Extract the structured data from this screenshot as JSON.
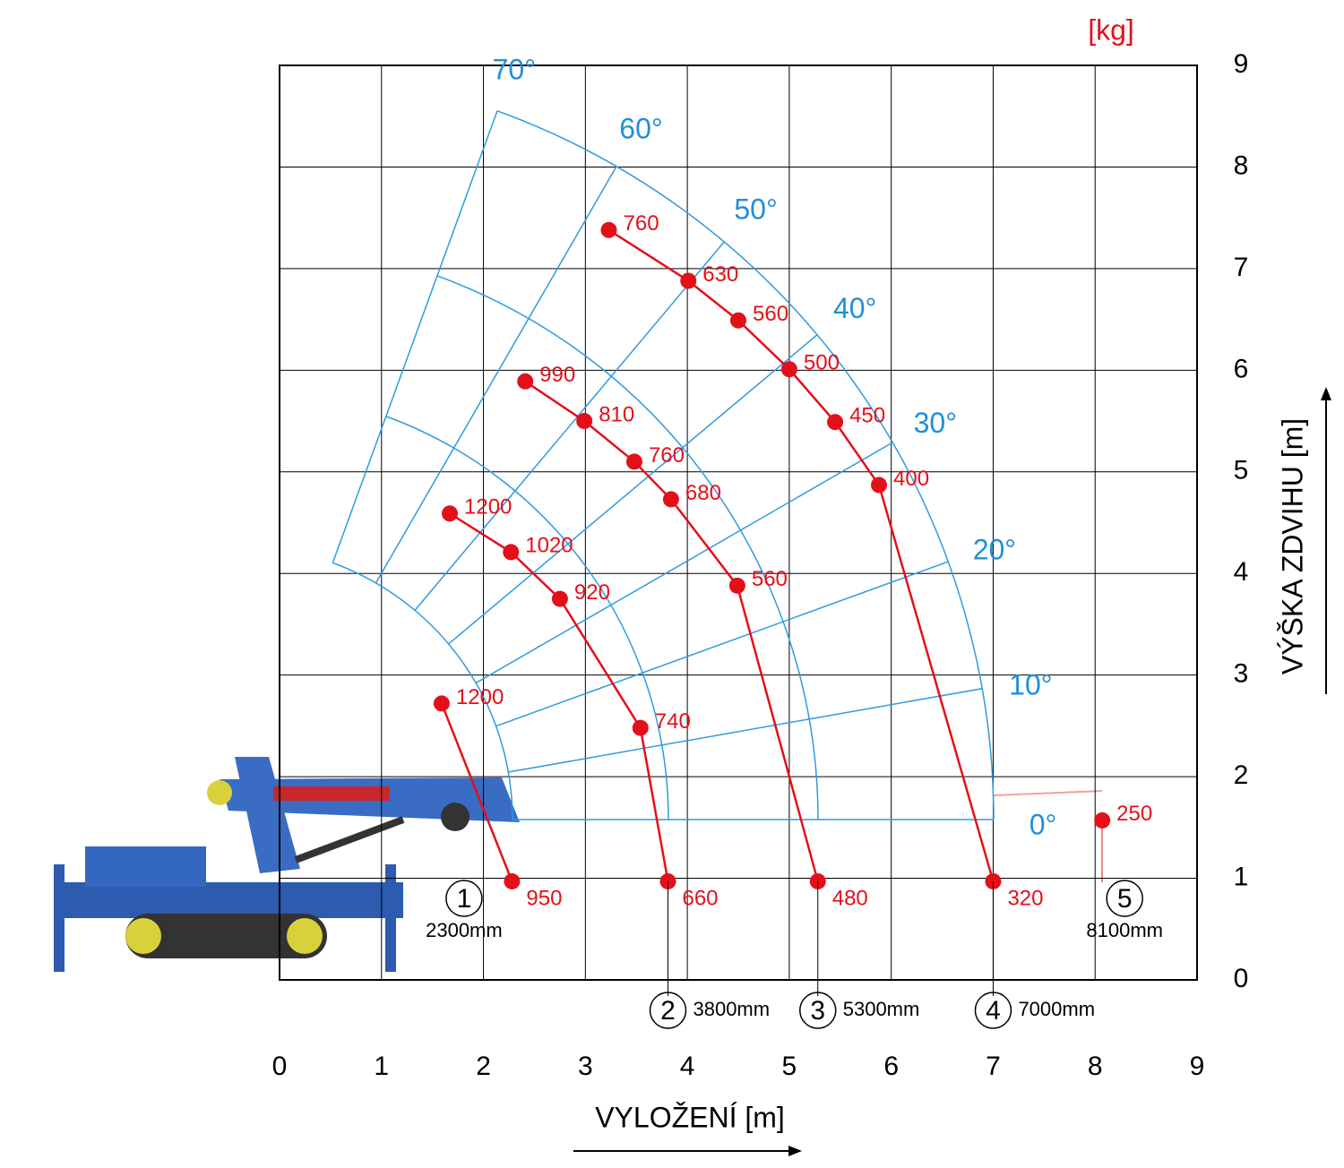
{
  "chart_data": {
    "type": "scatter",
    "unit": "[kg]",
    "xlabel": "VYLOŽENÍ [m]",
    "ylabel": "VÝŠKA ZDVIHU [m]",
    "xlim": [
      0,
      9
    ],
    "ylim": [
      0,
      9
    ],
    "xticks": [
      0,
      1,
      2,
      3,
      4,
      5,
      6,
      7,
      8,
      9
    ],
    "yticks": [
      0,
      1,
      2,
      3,
      4,
      5,
      6,
      7,
      8,
      9
    ],
    "grid": true,
    "angles": [
      "0°",
      "10°",
      "20°",
      "30°",
      "40°",
      "50°",
      "60°",
      "70°"
    ],
    "series": [
      {
        "number": "1",
        "name": "2300mm",
        "color": "#e3101a",
        "x": [
          2.28,
          1.59
        ],
        "y": [
          0.97,
          2.72
        ],
        "loads": [
          950,
          1200
        ]
      },
      {
        "number": "2",
        "name": "3800mm",
        "color": "#e3101a",
        "x": [
          1.67,
          2.27,
          2.75,
          3.54,
          3.81
        ],
        "y": [
          4.59,
          4.21,
          3.75,
          2.48,
          0.97
        ],
        "loads": [
          1200,
          1020,
          920,
          740,
          660
        ]
      },
      {
        "number": "3",
        "name": "5300mm",
        "color": "#e3101a",
        "x": [
          2.41,
          2.99,
          3.48,
          3.84,
          4.49,
          5.28
        ],
        "y": [
          5.89,
          5.5,
          5.1,
          4.73,
          3.88,
          0.97
        ],
        "loads": [
          990,
          810,
          760,
          680,
          560,
          480
        ]
      },
      {
        "number": "4",
        "name": "7000mm",
        "color": "#e3101a",
        "x": [
          3.23,
          4.01,
          4.5,
          5.0,
          5.45,
          5.88,
          7.0
        ],
        "y": [
          7.38,
          6.88,
          6.49,
          6.01,
          5.49,
          4.87,
          0.97
        ],
        "loads": [
          760,
          630,
          560,
          500,
          450,
          400,
          320
        ]
      },
      {
        "number": "5",
        "name": "8100mm",
        "color": "#e3101a",
        "x": [
          8.07
        ],
        "y": [
          1.57
        ],
        "loads": [
          250
        ]
      }
    ]
  }
}
